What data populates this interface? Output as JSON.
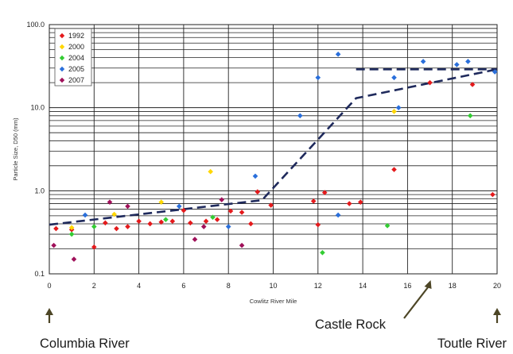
{
  "chart_data": {
    "type": "scatter",
    "title": "",
    "xlabel": "Cowlitz River Mile",
    "ylabel": "Particle Size, D50 (mm)",
    "xlim": [
      0,
      20
    ],
    "ylim": [
      0.1,
      100
    ],
    "y_scale": "log",
    "x_ticks": [
      0,
      2,
      4,
      6,
      8,
      10,
      12,
      14,
      16,
      18,
      20
    ],
    "y_ticks": [
      0.1,
      1,
      10,
      100
    ],
    "y_tick_labels": [
      "0.1",
      "1.0",
      "10.0",
      "100.0"
    ],
    "grid": "vertical every 2 miles; horizontal log minor gridlines",
    "legend_position": "top-left",
    "series": [
      {
        "name": "1992",
        "color": "#e41a1c",
        "points": [
          [
            0.3,
            0.35
          ],
          [
            1.0,
            0.34
          ],
          [
            2.0,
            0.21
          ],
          [
            2.5,
            0.41
          ],
          [
            3.0,
            0.35
          ],
          [
            3.5,
            0.37
          ],
          [
            4.0,
            0.43
          ],
          [
            4.5,
            0.4
          ],
          [
            5.0,
            0.42
          ],
          [
            5.5,
            0.43
          ],
          [
            6.0,
            0.58
          ],
          [
            6.3,
            0.41
          ],
          [
            7.0,
            0.43
          ],
          [
            7.5,
            0.45
          ],
          [
            8.1,
            0.57
          ],
          [
            8.6,
            0.55
          ],
          [
            9.0,
            0.4
          ],
          [
            9.3,
            0.97
          ],
          [
            9.9,
            0.67
          ],
          [
            11.8,
            0.75
          ],
          [
            12.0,
            0.39
          ],
          [
            12.3,
            0.95
          ],
          [
            13.4,
            0.7
          ],
          [
            13.9,
            0.73
          ],
          [
            15.4,
            1.8
          ],
          [
            17.0,
            20.0
          ],
          [
            18.9,
            19.0
          ],
          [
            19.8,
            0.9
          ]
        ]
      },
      {
        "name": "2000",
        "color": "#ffd700",
        "points": [
          [
            1.0,
            0.36
          ],
          [
            2.9,
            0.52
          ],
          [
            5.0,
            0.73
          ],
          [
            7.2,
            1.7
          ],
          [
            15.4,
            9.0
          ]
        ]
      },
      {
        "name": "2004",
        "color": "#33cc33",
        "points": [
          [
            1.0,
            0.3
          ],
          [
            2.0,
            0.37
          ],
          [
            5.2,
            0.45
          ],
          [
            7.3,
            0.48
          ],
          [
            12.2,
            0.18
          ],
          [
            15.1,
            0.38
          ],
          [
            18.8,
            8.0
          ]
        ]
      },
      {
        "name": "2005",
        "color": "#2a6fdb",
        "points": [
          [
            1.6,
            0.51
          ],
          [
            5.8,
            0.65
          ],
          [
            8.0,
            0.37
          ],
          [
            9.2,
            1.5
          ],
          [
            11.2,
            8.0
          ],
          [
            12.0,
            23.0
          ],
          [
            12.9,
            0.51
          ],
          [
            12.9,
            44.0
          ],
          [
            15.4,
            23.0
          ],
          [
            15.6,
            10.0
          ],
          [
            16.7,
            36.0
          ],
          [
            18.2,
            33.0
          ],
          [
            18.7,
            36.0
          ],
          [
            19.9,
            27.0
          ]
        ]
      },
      {
        "name": "2007",
        "color": "#a0115a",
        "points": [
          [
            0.2,
            0.22
          ],
          [
            1.1,
            0.15
          ],
          [
            2.7,
            0.73
          ],
          [
            3.5,
            0.65
          ],
          [
            6.5,
            0.26
          ],
          [
            6.9,
            0.37
          ],
          [
            7.7,
            0.78
          ],
          [
            8.6,
            0.22
          ]
        ]
      }
    ],
    "trend_lines": [
      {
        "points": [
          [
            0,
            0.39
          ],
          [
            9.5,
            0.77
          ],
          [
            13.7,
            13.0
          ],
          [
            20.0,
            29.0
          ]
        ]
      },
      {
        "points": [
          [
            13.7,
            29.0
          ],
          [
            20.0,
            29.0
          ]
        ]
      }
    ],
    "annotations": [
      {
        "label": "Columbia River",
        "x": 0
      },
      {
        "label": "Castle Rock",
        "x": 17
      },
      {
        "label": "Toutle River",
        "x": 20
      }
    ]
  }
}
